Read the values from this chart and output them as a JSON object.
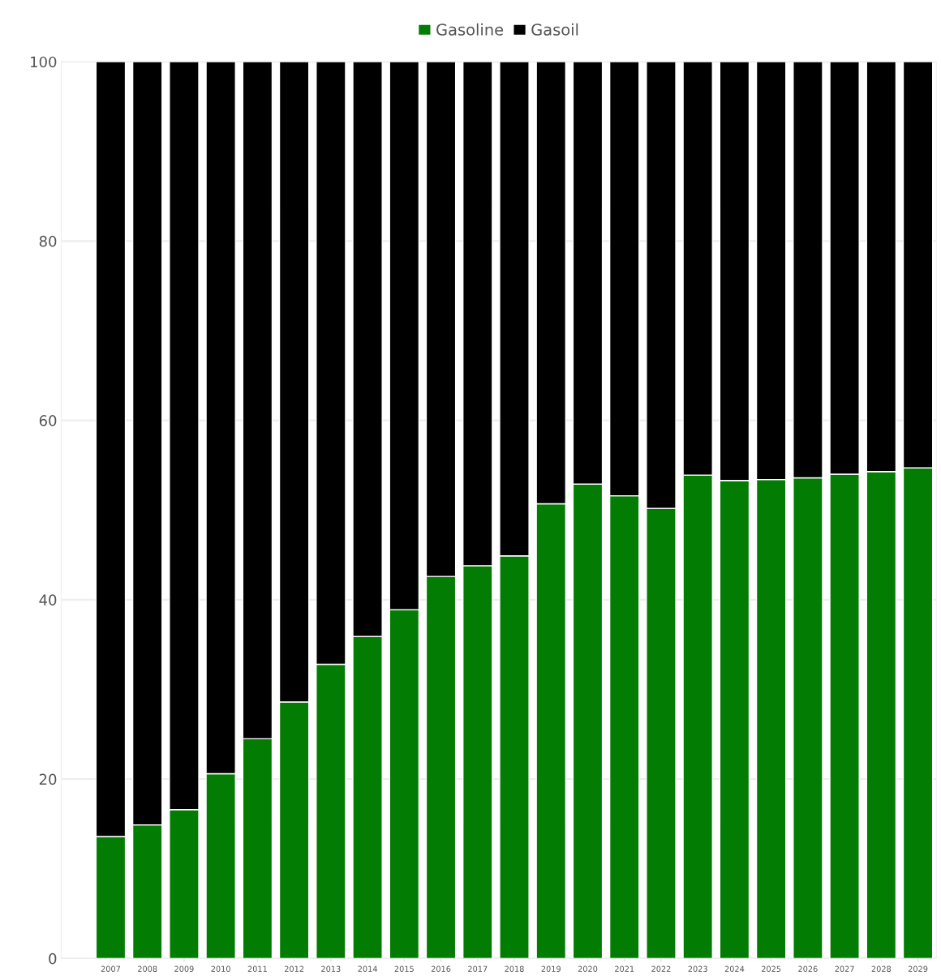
{
  "chart_data": {
    "type": "bar",
    "stacked": true,
    "categories": [
      "2007",
      "2008",
      "2009",
      "2010",
      "2011",
      "2012",
      "2013",
      "2014",
      "2015",
      "2016",
      "2017",
      "2018",
      "2019",
      "2020",
      "2021",
      "2022",
      "2023",
      "2024",
      "2025",
      "2026",
      "2027",
      "2028",
      "2029"
    ],
    "series": [
      {
        "name": "Gasoline",
        "color": "#037c03",
        "values": [
          13.6,
          14.9,
          16.6,
          20.6,
          24.5,
          28.6,
          32.8,
          35.9,
          38.9,
          42.6,
          43.8,
          44.9,
          50.7,
          52.9,
          51.6,
          50.2,
          53.9,
          53.3,
          53.4,
          53.6,
          54.0,
          54.3,
          54.7
        ]
      },
      {
        "name": "Gasoil",
        "color": "#000000",
        "values": [
          86.4,
          85.1,
          83.4,
          79.4,
          75.5,
          71.4,
          67.2,
          64.1,
          61.1,
          57.4,
          56.2,
          55.1,
          49.3,
          47.1,
          48.4,
          49.8,
          46.1,
          46.7,
          46.6,
          46.4,
          46.0,
          45.7,
          45.3
        ]
      }
    ],
    "ylim": [
      0,
      100
    ],
    "yticks": [
      0,
      20,
      40,
      60,
      80,
      100
    ],
    "grid": "y",
    "legend": "top"
  }
}
